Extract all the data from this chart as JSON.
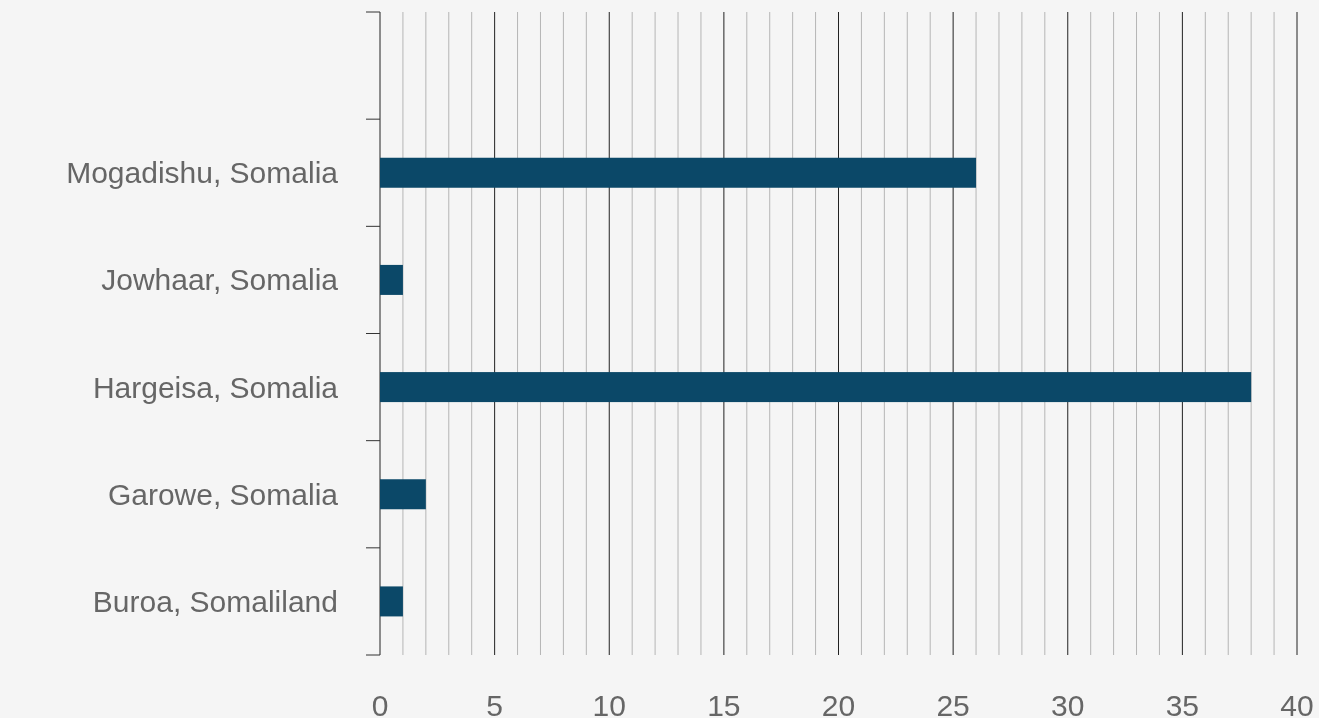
{
  "chart_data": {
    "type": "bar",
    "orientation": "horizontal",
    "categories": [
      null,
      "Mogadishu, Somalia",
      "Jowhaar, Somalia",
      "Hargeisa, Somalia",
      "Garowe, Somalia",
      "Buroa, Somaliland"
    ],
    "values": [
      null,
      26,
      1,
      38,
      2,
      1
    ],
    "color": "#0b4868",
    "xlim": [
      0,
      40
    ],
    "xticks": [
      0,
      {
        "value": 1,
        "label": null
      },
      {
        "value": 2,
        "label": null
      },
      {
        "value": 3,
        "label": null
      },
      {
        "value": 4,
        "label": null
      },
      5,
      {
        "value": 6,
        "label": null
      },
      {
        "value": 7,
        "label": null
      },
      {
        "value": 8,
        "label": null
      },
      {
        "value": 9,
        "label": null
      },
      10,
      {
        "value": 11,
        "label": null
      },
      {
        "value": 12,
        "label": null
      },
      {
        "value": 13,
        "label": null
      },
      {
        "value": 14,
        "label": null
      },
      15,
      {
        "value": 16,
        "label": null
      },
      {
        "value": 17,
        "label": null
      },
      {
        "value": 18,
        "label": null
      },
      {
        "value": 19,
        "label": null
      },
      20,
      {
        "value": 21,
        "label": null
      },
      {
        "value": 22,
        "label": null
      },
      {
        "value": 23,
        "label": null
      },
      {
        "value": 24,
        "label": null
      },
      25,
      {
        "value": 26,
        "label": null
      },
      {
        "value": 27,
        "label": null
      },
      {
        "value": 28,
        "label": null
      },
      {
        "value": 29,
        "label": null
      },
      30,
      {
        "value": 31,
        "label": null
      },
      {
        "value": 32,
        "label": null
      },
      {
        "value": 33,
        "label": null
      },
      {
        "value": 34,
        "label": null
      },
      35,
      {
        "value": 36,
        "label": null
      },
      {
        "value": 37,
        "label": null
      },
      {
        "value": 38,
        "label": null
      },
      {
        "value": 39,
        "label": null
      },
      40
    ],
    "grid": "x"
  }
}
